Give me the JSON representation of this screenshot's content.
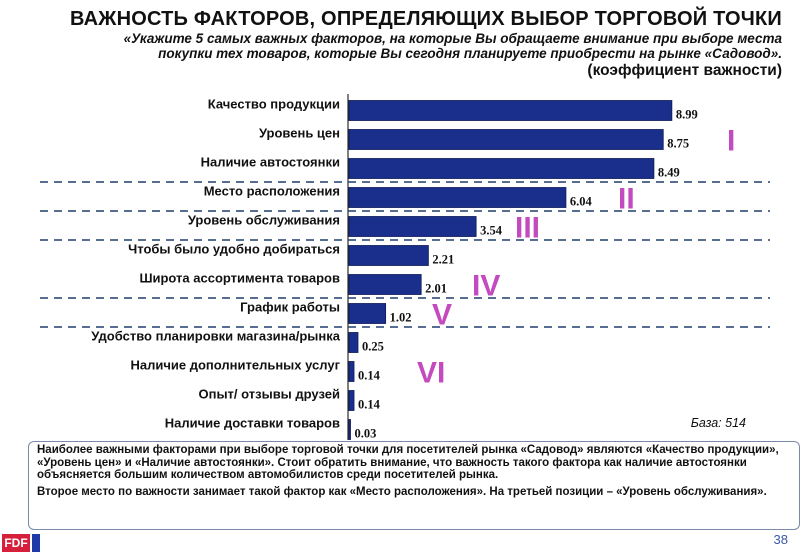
{
  "header": {
    "title": "ВАЖНОСТЬ ФАКТОРОВ, ОПРЕДЕЛЯЮЩИХ ВЫБОР ТОРГОВОЙ ТОЧКИ",
    "subtitle_line1": "«Укажите 5 самых важных факторов, на которые Вы обращаете внимание при выборе места",
    "subtitle_line2": "покупки тех товаров, которые Вы сегодня планируете приобрести на рынке «Садовод».",
    "unit": "(коэффициент важности)"
  },
  "chart_data": {
    "type": "bar",
    "orientation": "horizontal",
    "categories": [
      "Качество продукции",
      "Уровень цен",
      "Наличие автостоянки",
      "Место расположения",
      "Уровень обслуживания",
      "Чтобы было удобно добираться",
      "Широта ассортимента товаров",
      "График работы",
      "Удобство планировки магазина/рынка",
      "Наличие дополнительных услуг",
      "Опыт/ отзывы друзей",
      "Наличие доставки товаров"
    ],
    "values": [
      8.99,
      8.75,
      8.49,
      6.04,
      3.54,
      2.21,
      2.01,
      1.02,
      0.25,
      0.14,
      0.14,
      0.03
    ],
    "value_labels": [
      "8.99",
      "8.75",
      "8.49",
      "6.04",
      "3.54",
      "2.21",
      "2.01",
      "1.02",
      "0.25",
      "0.14",
      "0.14",
      "0.03"
    ],
    "ranks": [
      {
        "label": "I",
        "after_index": 1
      },
      {
        "label": "II",
        "after_index": 3
      },
      {
        "label": "III",
        "after_index": 4
      },
      {
        "label": "IV",
        "after_index": 6
      },
      {
        "label": "V",
        "after_index": 7
      },
      {
        "label": "VI",
        "after_index": 9
      }
    ],
    "group_separators_after": [
      2,
      3,
      4,
      6,
      7
    ],
    "xlim": [
      0,
      9.3
    ],
    "bar_color": "#1a2f8c",
    "rank_color": "#c34bbf"
  },
  "base_label": "База: 514",
  "summary": {
    "p1": "Наиболее важными факторами при выборе торговой точки для посетителей рынка «Садовод» являются «Качество продукции», «Уровень цен» и «Наличие автостоянки». Стоит обратить внимание, что важность такого фактора как наличие автостоянки объясняется большим количеством автомобилистов среди посетителей рынка.",
    "p2": "Второе место по важности занимает такой фактор как «Место расположения». На третьей позиции – «Уровень обслуживания»."
  },
  "footer": {
    "logo_text": "FDF",
    "page_number": "38"
  }
}
